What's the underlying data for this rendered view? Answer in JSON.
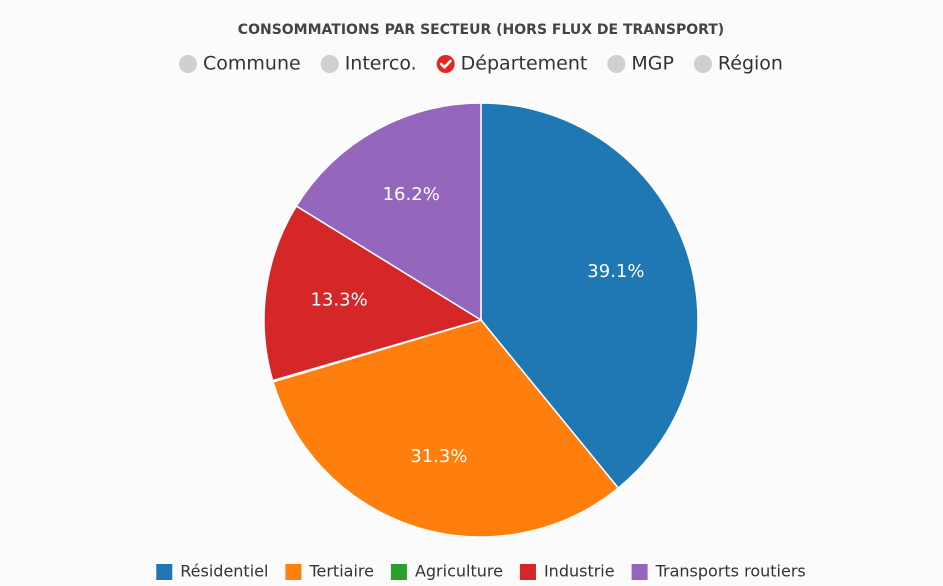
{
  "chart_data": {
    "type": "pie",
    "title": "CONSOMMATIONS PAR SECTEUR (HORS FLUX DE TRANSPORT)",
    "filters": {
      "options": [
        "Commune",
        "Interco.",
        "Département",
        "MGP",
        "Région"
      ],
      "selected": 2
    },
    "categories": [
      "Résidentiel",
      "Tertiaire",
      "Agriculture",
      "Industrie",
      "Transports routiers"
    ],
    "values": [
      39.1,
      31.3,
      0.1,
      13.3,
      16.2
    ],
    "value_labels": [
      "39.1%",
      "31.3%",
      null,
      "13.3%",
      "16.2%"
    ],
    "colors": [
      "#1f77b4",
      "#ff7f0e",
      "#2ca02c",
      "#d62728",
      "#9467bd"
    ],
    "legend": "bottom"
  }
}
